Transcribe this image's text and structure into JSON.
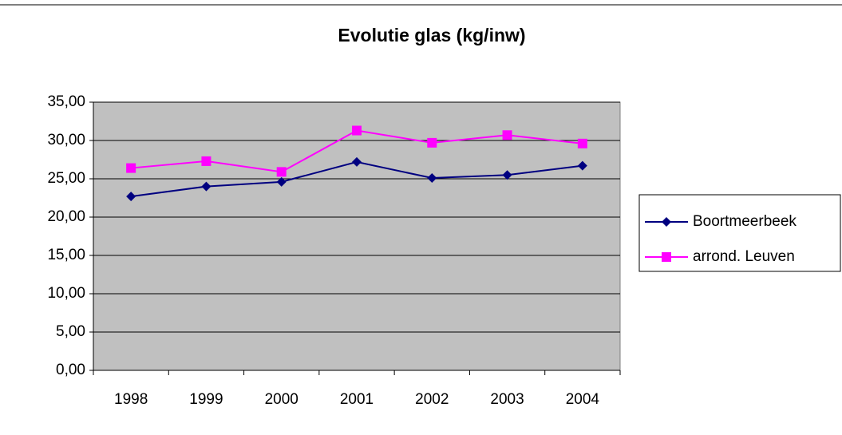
{
  "chart_data": {
    "type": "line",
    "title": "Evolutie glas (kg/inw)",
    "categories": [
      "1998",
      "1999",
      "2000",
      "2001",
      "2002",
      "2003",
      "2004"
    ],
    "series": [
      {
        "name": "Boortmeerbeek",
        "color": "#000080",
        "marker": "diamond",
        "values": [
          22.7,
          24.0,
          24.6,
          27.2,
          25.1,
          25.5,
          26.7
        ]
      },
      {
        "name": "arrond. Leuven",
        "color": "#ff00ff",
        "marker": "square",
        "values": [
          26.4,
          27.3,
          25.9,
          31.3,
          29.7,
          30.7,
          29.6
        ]
      }
    ],
    "ylim": [
      0,
      35
    ],
    "yticks": [
      {
        "value": 0,
        "label": "0,00"
      },
      {
        "value": 5,
        "label": "5,00"
      },
      {
        "value": 10,
        "label": "10,00"
      },
      {
        "value": 15,
        "label": "15,00"
      },
      {
        "value": 20,
        "label": "20,00"
      },
      {
        "value": 25,
        "label": "25,00"
      },
      {
        "value": 30,
        "label": "30,00"
      },
      {
        "value": 35,
        "label": "35,00"
      }
    ],
    "grid": true,
    "legend": "right",
    "plot_background": "#c0c0c0"
  }
}
